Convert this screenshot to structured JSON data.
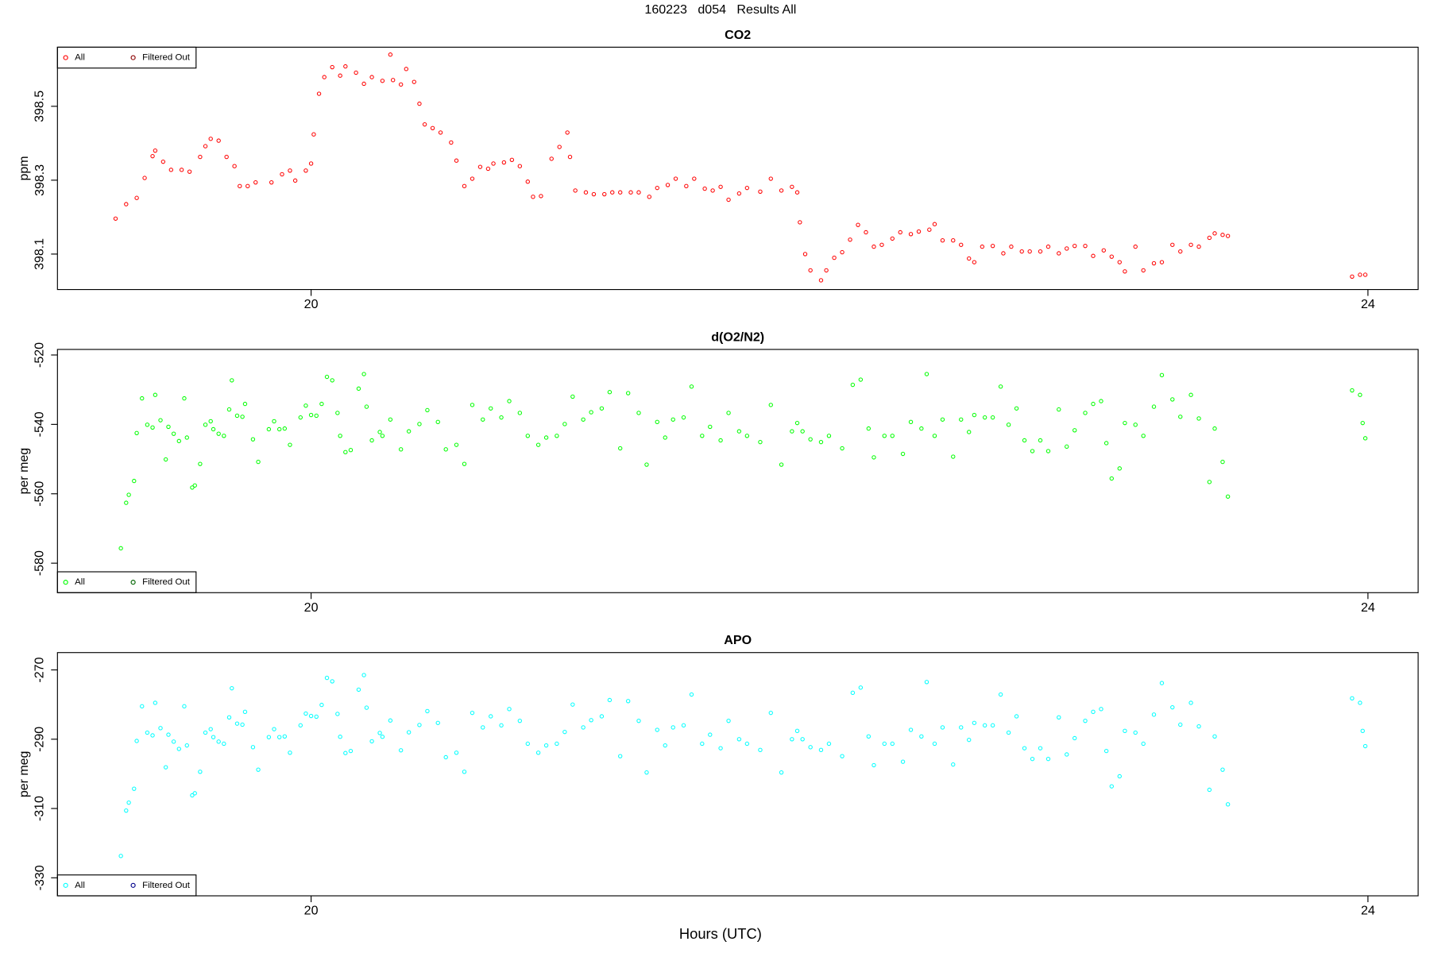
{
  "title": "160223   d054   Results All",
  "x_label": "Hours (UTC)",
  "chart_data": [
    {
      "type": "scatter",
      "title": "CO2",
      "y_label": "ppm",
      "legend": "topleft",
      "xlim": [
        19.04,
        24.19
      ],
      "xticks": [
        20,
        24
      ],
      "ylim": [
        398.004,
        398.66
      ],
      "yticks": [
        398.1,
        398.3,
        398.5
      ],
      "x": [
        19.26,
        19.3,
        19.34,
        19.37,
        19.4,
        19.41,
        19.44,
        19.47,
        19.51,
        19.54,
        19.58,
        19.6,
        19.62,
        19.65,
        19.68,
        19.71,
        19.73,
        19.76,
        19.79,
        19.85,
        19.89,
        19.92,
        19.94,
        19.98,
        20.0,
        20.01,
        20.03,
        20.05,
        20.08,
        20.11,
        20.13,
        20.17,
        20.2,
        20.23,
        20.27,
        20.3,
        20.31,
        20.34,
        20.36,
        20.39,
        20.41,
        20.43,
        20.46,
        20.49,
        20.53,
        20.55,
        20.58,
        20.61,
        20.64,
        20.67,
        20.69,
        20.73,
        20.76,
        20.79,
        20.82,
        20.84,
        20.87,
        20.91,
        20.94,
        20.97,
        20.98,
        21.0,
        21.04,
        21.07,
        21.11,
        21.14,
        21.17,
        21.21,
        21.24,
        21.28,
        21.31,
        21.35,
        21.38,
        21.42,
        21.45,
        21.49,
        21.52,
        21.55,
        21.58,
        21.62,
        21.65,
        21.7,
        21.74,
        21.78,
        21.82,
        21.84,
        21.85,
        21.87,
        21.89,
        21.93,
        21.95,
        21.98,
        22.01,
        22.04,
        22.07,
        22.1,
        22.13,
        22.16,
        22.2,
        22.23,
        22.27,
        22.3,
        22.34,
        22.36,
        22.39,
        22.43,
        22.46,
        22.49,
        22.51,
        22.54,
        22.58,
        22.62,
        22.65,
        22.69,
        22.72,
        22.76,
        22.79,
        22.83,
        22.86,
        22.89,
        22.93,
        22.96,
        23.0,
        23.03,
        23.06,
        23.08,
        23.12,
        23.15,
        23.19,
        23.22,
        23.26,
        23.29,
        23.33,
        23.36,
        23.4,
        23.42,
        23.45,
        23.47,
        23.94,
        23.97,
        23.99
      ],
      "series": [
        {
          "name": "All",
          "color": "#ff0000",
          "values": [
            398.196,
            398.235,
            398.252,
            398.306,
            398.365,
            398.38,
            398.35,
            398.328,
            398.328,
            398.323,
            398.363,
            398.392,
            398.412,
            398.407,
            398.363,
            398.338,
            398.284,
            398.284,
            398.294,
            398.294,
            398.316,
            398.326,
            398.299,
            398.326,
            398.345,
            398.424,
            398.534,
            398.579,
            398.606,
            398.583,
            398.608,
            398.591,
            398.561,
            398.579,
            398.569,
            398.64,
            398.571,
            398.559,
            398.601,
            398.566,
            398.507,
            398.451,
            398.441,
            398.429,
            398.402,
            398.353,
            398.284,
            398.304,
            398.336,
            398.331,
            398.345,
            398.348,
            398.355,
            398.338,
            398.296,
            398.255,
            398.257,
            398.358,
            398.39,
            398.429,
            398.363,
            398.272,
            398.267,
            398.262,
            398.262,
            398.267,
            398.267,
            398.267,
            398.267,
            398.255,
            398.279,
            398.287,
            398.304,
            398.284,
            398.304,
            398.277,
            398.272,
            398.282,
            398.247,
            398.264,
            398.279,
            398.269,
            398.304,
            398.272,
            398.282,
            398.267,
            398.186,
            398.1,
            398.056,
            398.029,
            398.056,
            398.09,
            398.105,
            398.139,
            398.179,
            398.159,
            398.12,
            398.125,
            398.142,
            398.159,
            398.154,
            398.161,
            398.166,
            398.181,
            398.137,
            398.137,
            398.125,
            398.088,
            398.078,
            398.12,
            398.122,
            398.102,
            398.12,
            398.107,
            398.107,
            398.107,
            398.12,
            398.102,
            398.115,
            398.122,
            398.122,
            398.095,
            398.11,
            398.093,
            398.078,
            398.053,
            398.12,
            398.056,
            398.075,
            398.078,
            398.125,
            398.107,
            398.125,
            398.12,
            398.144,
            398.156,
            398.152,
            398.149,
            398.039,
            398.044,
            398.044
          ]
        },
        {
          "name": "Filtered Out",
          "color": "#8b0000",
          "x": [],
          "values": []
        }
      ]
    },
    {
      "type": "scatter",
      "title": "d(O2/N2)",
      "y_label": "per meg",
      "legend": "bottomleft",
      "xlim": [
        19.04,
        24.19
      ],
      "xticks": [
        20,
        24
      ],
      "ylim": [
        -588.5,
        -518.4
      ],
      "yticks": [
        -580,
        -560,
        -540,
        -520
      ],
      "x": [
        19.28,
        19.3,
        19.31,
        19.33,
        19.34,
        19.36,
        19.38,
        19.4,
        19.41,
        19.43,
        19.45,
        19.46,
        19.48,
        19.5,
        19.52,
        19.53,
        19.55,
        19.56,
        19.58,
        19.6,
        19.62,
        19.63,
        19.65,
        19.67,
        19.69,
        19.7,
        19.72,
        19.74,
        19.75,
        19.78,
        19.8,
        19.84,
        19.86,
        19.88,
        19.9,
        19.92,
        19.96,
        19.98,
        20.0,
        20.02,
        20.04,
        20.06,
        20.08,
        20.1,
        20.11,
        20.13,
        20.15,
        20.18,
        20.2,
        20.21,
        20.23,
        20.26,
        20.27,
        20.3,
        20.34,
        20.37,
        20.41,
        20.44,
        20.48,
        20.51,
        20.55,
        20.58,
        20.61,
        20.65,
        20.68,
        20.72,
        20.75,
        20.79,
        20.82,
        20.86,
        20.89,
        20.93,
        20.96,
        20.99,
        21.03,
        21.06,
        21.1,
        21.13,
        21.17,
        21.2,
        21.24,
        21.27,
        21.31,
        21.34,
        21.37,
        21.41,
        21.44,
        21.48,
        21.51,
        21.55,
        21.58,
        21.62,
        21.65,
        21.7,
        21.74,
        21.78,
        21.82,
        21.84,
        21.86,
        21.89,
        21.93,
        21.96,
        22.01,
        22.05,
        22.08,
        22.11,
        22.13,
        22.17,
        22.2,
        22.24,
        22.27,
        22.31,
        22.33,
        22.36,
        22.39,
        22.43,
        22.46,
        22.49,
        22.51,
        22.55,
        22.58,
        22.61,
        22.64,
        22.67,
        22.7,
        22.73,
        22.76,
        22.79,
        22.83,
        22.86,
        22.89,
        22.93,
        22.96,
        22.99,
        23.01,
        23.03,
        23.06,
        23.08,
        23.12,
        23.15,
        23.19,
        23.22,
        23.26,
        23.29,
        23.33,
        23.36,
        23.4,
        23.42,
        23.45,
        23.47,
        23.94,
        23.97,
        23.98,
        23.99
      ],
      "series": [
        {
          "name": "All",
          "color": "#00ff00",
          "values": [
            -575.7,
            -562.6,
            -560.3,
            -556.3,
            -542.5,
            -532.5,
            -540.1,
            -540.9,
            -531.5,
            -538.8,
            -550.1,
            -540.7,
            -542.7,
            -544.8,
            -532.5,
            -543.8,
            -558.2,
            -557.6,
            -551.4,
            -540.1,
            -539.1,
            -541.4,
            -542.7,
            -543.3,
            -535.7,
            -527.3,
            -537.5,
            -537.8,
            -534.1,
            -544.3,
            -550.8,
            -541.4,
            -539.1,
            -541.4,
            -541.2,
            -545.9,
            -538.0,
            -534.6,
            -537.3,
            -537.5,
            -534.1,
            -526.3,
            -527.3,
            -536.7,
            -543.3,
            -548.0,
            -547.4,
            -529.7,
            -525.5,
            -534.9,
            -544.6,
            -542.2,
            -543.3,
            -538.6,
            -547.2,
            -542.0,
            -539.9,
            -535.9,
            -539.3,
            -547.2,
            -545.9,
            -551.4,
            -534.4,
            -538.6,
            -535.4,
            -538.0,
            -533.3,
            -536.7,
            -543.3,
            -545.9,
            -543.8,
            -543.3,
            -539.9,
            -532.0,
            -538.6,
            -536.5,
            -535.4,
            -530.7,
            -546.9,
            -531.0,
            -536.7,
            -551.6,
            -539.3,
            -543.8,
            -538.6,
            -538.0,
            -529.1,
            -543.3,
            -540.7,
            -544.6,
            -536.7,
            -542.0,
            -543.3,
            -545.1,
            -534.4,
            -551.6,
            -542.0,
            -539.6,
            -542.0,
            -544.3,
            -545.1,
            -543.3,
            -546.9,
            -528.6,
            -527.1,
            -541.2,
            -549.5,
            -543.3,
            -543.3,
            -548.5,
            -539.3,
            -541.2,
            -525.5,
            -543.3,
            -538.6,
            -549.3,
            -538.6,
            -542.2,
            -537.3,
            -538.0,
            -538.0,
            -529.1,
            -540.1,
            -535.4,
            -544.6,
            -547.7,
            -544.6,
            -547.7,
            -535.7,
            -546.4,
            -541.7,
            -536.7,
            -534.1,
            -533.3,
            -545.4,
            -555.6,
            -552.7,
            -539.6,
            -540.1,
            -543.3,
            -534.9,
            -525.8,
            -532.8,
            -537.8,
            -531.5,
            -538.3,
            -556.6,
            -541.2,
            -550.8,
            -560.8,
            -530.2,
            -531.5,
            -539.6,
            -544.0
          ]
        },
        {
          "name": "Filtered Out",
          "color": "#006400",
          "x": [],
          "values": []
        }
      ]
    },
    {
      "type": "scatter",
      "title": "APO",
      "y_label": "per meg",
      "legend": "bottomleft",
      "xlim": [
        19.04,
        24.19
      ],
      "xticks": [
        20,
        24
      ],
      "ylim": [
        -335.2,
        -265.0
      ],
      "yticks": [
        -330,
        -310,
        -290,
        -270
      ],
      "x": [
        19.28,
        19.3,
        19.31,
        19.33,
        19.34,
        19.36,
        19.38,
        19.4,
        19.41,
        19.43,
        19.45,
        19.46,
        19.48,
        19.5,
        19.52,
        19.53,
        19.55,
        19.56,
        19.58,
        19.6,
        19.62,
        19.63,
        19.65,
        19.67,
        19.69,
        19.7,
        19.72,
        19.74,
        19.75,
        19.78,
        19.8,
        19.84,
        19.86,
        19.88,
        19.9,
        19.92,
        19.96,
        19.98,
        20.0,
        20.02,
        20.04,
        20.06,
        20.08,
        20.1,
        20.11,
        20.13,
        20.15,
        20.18,
        20.2,
        20.21,
        20.23,
        20.26,
        20.27,
        20.3,
        20.34,
        20.37,
        20.41,
        20.44,
        20.48,
        20.51,
        20.55,
        20.58,
        20.61,
        20.65,
        20.68,
        20.72,
        20.75,
        20.79,
        20.82,
        20.86,
        20.89,
        20.93,
        20.96,
        20.99,
        21.03,
        21.06,
        21.1,
        21.13,
        21.17,
        21.2,
        21.24,
        21.27,
        21.31,
        21.34,
        21.37,
        21.41,
        21.44,
        21.48,
        21.51,
        21.55,
        21.58,
        21.62,
        21.65,
        21.7,
        21.74,
        21.78,
        21.82,
        21.84,
        21.86,
        21.89,
        21.93,
        21.96,
        22.01,
        22.05,
        22.08,
        22.11,
        22.13,
        22.17,
        22.2,
        22.24,
        22.27,
        22.31,
        22.33,
        22.36,
        22.39,
        22.43,
        22.46,
        22.49,
        22.51,
        22.55,
        22.58,
        22.61,
        22.64,
        22.67,
        22.7,
        22.73,
        22.76,
        22.79,
        22.83,
        22.86,
        22.89,
        22.93,
        22.96,
        22.99,
        23.01,
        23.03,
        23.06,
        23.08,
        23.12,
        23.15,
        23.19,
        23.22,
        23.26,
        23.29,
        23.33,
        23.36,
        23.4,
        23.42,
        23.45,
        23.47,
        23.94,
        23.97,
        23.98,
        23.99
      ],
      "series": [
        {
          "name": "All",
          "color": "#00ffff",
          "values": [
            -323.7,
            -310.6,
            -308.3,
            -304.3,
            -290.5,
            -280.5,
            -288.1,
            -288.9,
            -279.5,
            -286.8,
            -298.1,
            -288.7,
            -290.7,
            -292.8,
            -280.5,
            -291.8,
            -306.2,
            -305.6,
            -299.4,
            -288.1,
            -287.1,
            -289.4,
            -290.7,
            -291.3,
            -283.7,
            -275.3,
            -285.5,
            -285.8,
            -282.1,
            -292.3,
            -298.8,
            -289.4,
            -287.1,
            -289.4,
            -289.2,
            -293.9,
            -286.0,
            -282.6,
            -283.3,
            -283.5,
            -280.1,
            -272.3,
            -273.3,
            -282.7,
            -289.3,
            -294.0,
            -293.4,
            -275.7,
            -271.5,
            -280.9,
            -290.6,
            -288.2,
            -289.3,
            -284.6,
            -293.2,
            -288.0,
            -285.9,
            -281.9,
            -285.3,
            -295.2,
            -293.9,
            -299.4,
            -282.4,
            -286.6,
            -283.4,
            -286.0,
            -281.3,
            -284.7,
            -291.3,
            -293.9,
            -291.8,
            -291.3,
            -287.9,
            -280.0,
            -286.6,
            -284.5,
            -283.4,
            -278.7,
            -294.9,
            -279.0,
            -284.7,
            -299.6,
            -287.3,
            -291.8,
            -286.6,
            -286.0,
            -277.1,
            -291.3,
            -288.7,
            -292.6,
            -284.7,
            -290.0,
            -291.3,
            -293.1,
            -282.4,
            -299.6,
            -290.0,
            -287.6,
            -290.0,
            -292.3,
            -293.1,
            -291.3,
            -294.9,
            -276.6,
            -275.1,
            -289.2,
            -297.5,
            -291.3,
            -291.3,
            -296.5,
            -287.3,
            -289.2,
            -273.5,
            -291.3,
            -286.6,
            -297.3,
            -286.6,
            -290.2,
            -285.3,
            -286.0,
            -286.0,
            -277.1,
            -288.1,
            -283.4,
            -292.6,
            -295.7,
            -292.6,
            -295.7,
            -283.7,
            -294.4,
            -289.7,
            -284.7,
            -282.1,
            -281.3,
            -293.4,
            -303.6,
            -300.7,
            -287.6,
            -288.1,
            -291.3,
            -282.9,
            -273.8,
            -280.8,
            -285.8,
            -279.5,
            -286.3,
            -304.6,
            -289.2,
            -298.8,
            -308.8,
            -278.2,
            -279.5,
            -287.6,
            -292.0
          ]
        },
        {
          "name": "Filtered Out",
          "color": "#00008b",
          "x": [],
          "values": []
        }
      ]
    }
  ]
}
